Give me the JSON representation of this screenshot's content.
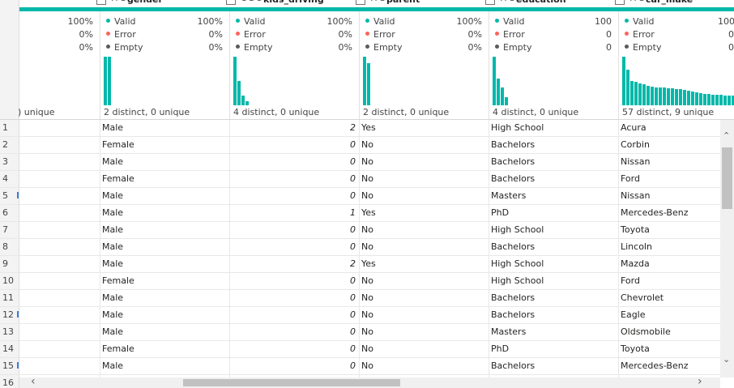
{
  "columns": [
    {
      "key": "prev",
      "type_icon": "",
      "header": "",
      "valid": "",
      "error": "",
      "empty": "",
      "distinct": ") unique",
      "bars": []
    },
    {
      "key": "gender",
      "type_icon": "A C",
      "header": "gender",
      "valid": "100%",
      "error": "0%",
      "empty": "0%",
      "distinct": "2 distinct, 0 unique",
      "bars": [
        60,
        60
      ]
    },
    {
      "key": "kids_driving",
      "type_icon": "1 2 3",
      "header": "kids_driving",
      "valid": "100%",
      "error": "0%",
      "empty": "0%",
      "distinct": "4 distinct, 0 unique",
      "bars": [
        60,
        30,
        12,
        5
      ]
    },
    {
      "key": "parent",
      "type_icon": "A C",
      "header": "parent",
      "valid": "100%",
      "error": "0%",
      "empty": "0%",
      "distinct": "2 distinct, 0 unique",
      "bars": [
        60,
        52
      ]
    },
    {
      "key": "education",
      "type_icon": "A C",
      "header": "education",
      "valid": "100%",
      "error": "0%",
      "empty": "0%",
      "distinct": "4 distinct, 0 unique",
      "bars": [
        60,
        33,
        22,
        10
      ]
    },
    {
      "key": "car_make",
      "type_icon": "A C",
      "header": "car_make",
      "valid": "100",
      "error": "0",
      "empty": "0",
      "distinct": "57 distinct, 9 unique",
      "bars": [
        60,
        44,
        30,
        29,
        27,
        26,
        24,
        23,
        22,
        22,
        22,
        21,
        21,
        20,
        20,
        19,
        18,
        17,
        16,
        15,
        14,
        14,
        13,
        13,
        13,
        12,
        12,
        12
      ]
    }
  ],
  "labels": {
    "valid": "Valid",
    "error": "Error",
    "empty": "Empty"
  },
  "colors": {
    "valid": "#01B8AA",
    "error": "#FD625E",
    "empty": "#5A5A5A",
    "accent": "#01B8AA"
  },
  "rows": [
    {
      "n": "1",
      "gender": "Male",
      "kids": "2",
      "parent": "Yes",
      "education": "High School",
      "car": "Acura"
    },
    {
      "n": "2",
      "gender": "Female",
      "kids": "0",
      "parent": "No",
      "education": "Bachelors",
      "car": "Corbin"
    },
    {
      "n": "3",
      "gender": "Male",
      "kids": "0",
      "parent": "No",
      "education": "Bachelors",
      "car": "Nissan"
    },
    {
      "n": "4",
      "gender": "Female",
      "kids": "0",
      "parent": "No",
      "education": "Bachelors",
      "car": "Ford"
    },
    {
      "n": "5",
      "gender": "Male",
      "kids": "0",
      "parent": "No",
      "education": "Masters",
      "car": "Nissan"
    },
    {
      "n": "6",
      "gender": "Male",
      "kids": "1",
      "parent": "Yes",
      "education": "PhD",
      "car": "Mercedes-Benz"
    },
    {
      "n": "7",
      "gender": "Male",
      "kids": "0",
      "parent": "No",
      "education": "High School",
      "car": "Toyota"
    },
    {
      "n": "8",
      "gender": "Male",
      "kids": "0",
      "parent": "No",
      "education": "Bachelors",
      "car": "Lincoln"
    },
    {
      "n": "9",
      "gender": "Male",
      "kids": "2",
      "parent": "Yes",
      "education": "High School",
      "car": "Mazda"
    },
    {
      "n": "10",
      "gender": "Female",
      "kids": "0",
      "parent": "No",
      "education": "High School",
      "car": "Ford"
    },
    {
      "n": "11",
      "gender": "Male",
      "kids": "0",
      "parent": "No",
      "education": "Bachelors",
      "car": "Chevrolet"
    },
    {
      "n": "12",
      "gender": "Male",
      "kids": "0",
      "parent": "No",
      "education": "Bachelors",
      "car": "Eagle"
    },
    {
      "n": "13",
      "gender": "Male",
      "kids": "0",
      "parent": "No",
      "education": "Masters",
      "car": "Oldsmobile"
    },
    {
      "n": "14",
      "gender": "Female",
      "kids": "0",
      "parent": "No",
      "education": "PhD",
      "car": "Toyota"
    },
    {
      "n": "15",
      "gender": "Male",
      "kids": "0",
      "parent": "No",
      "education": "Bachelors",
      "car": "Mercedes-Benz"
    },
    {
      "n": "16",
      "gender": "",
      "kids": "",
      "parent": "",
      "education": "",
      "car": ""
    }
  ],
  "row_markers": [
    "5",
    "12",
    "15"
  ],
  "scroll": {
    "up": "⌃",
    "down": "⌄",
    "left": "‹",
    "right": "›"
  }
}
